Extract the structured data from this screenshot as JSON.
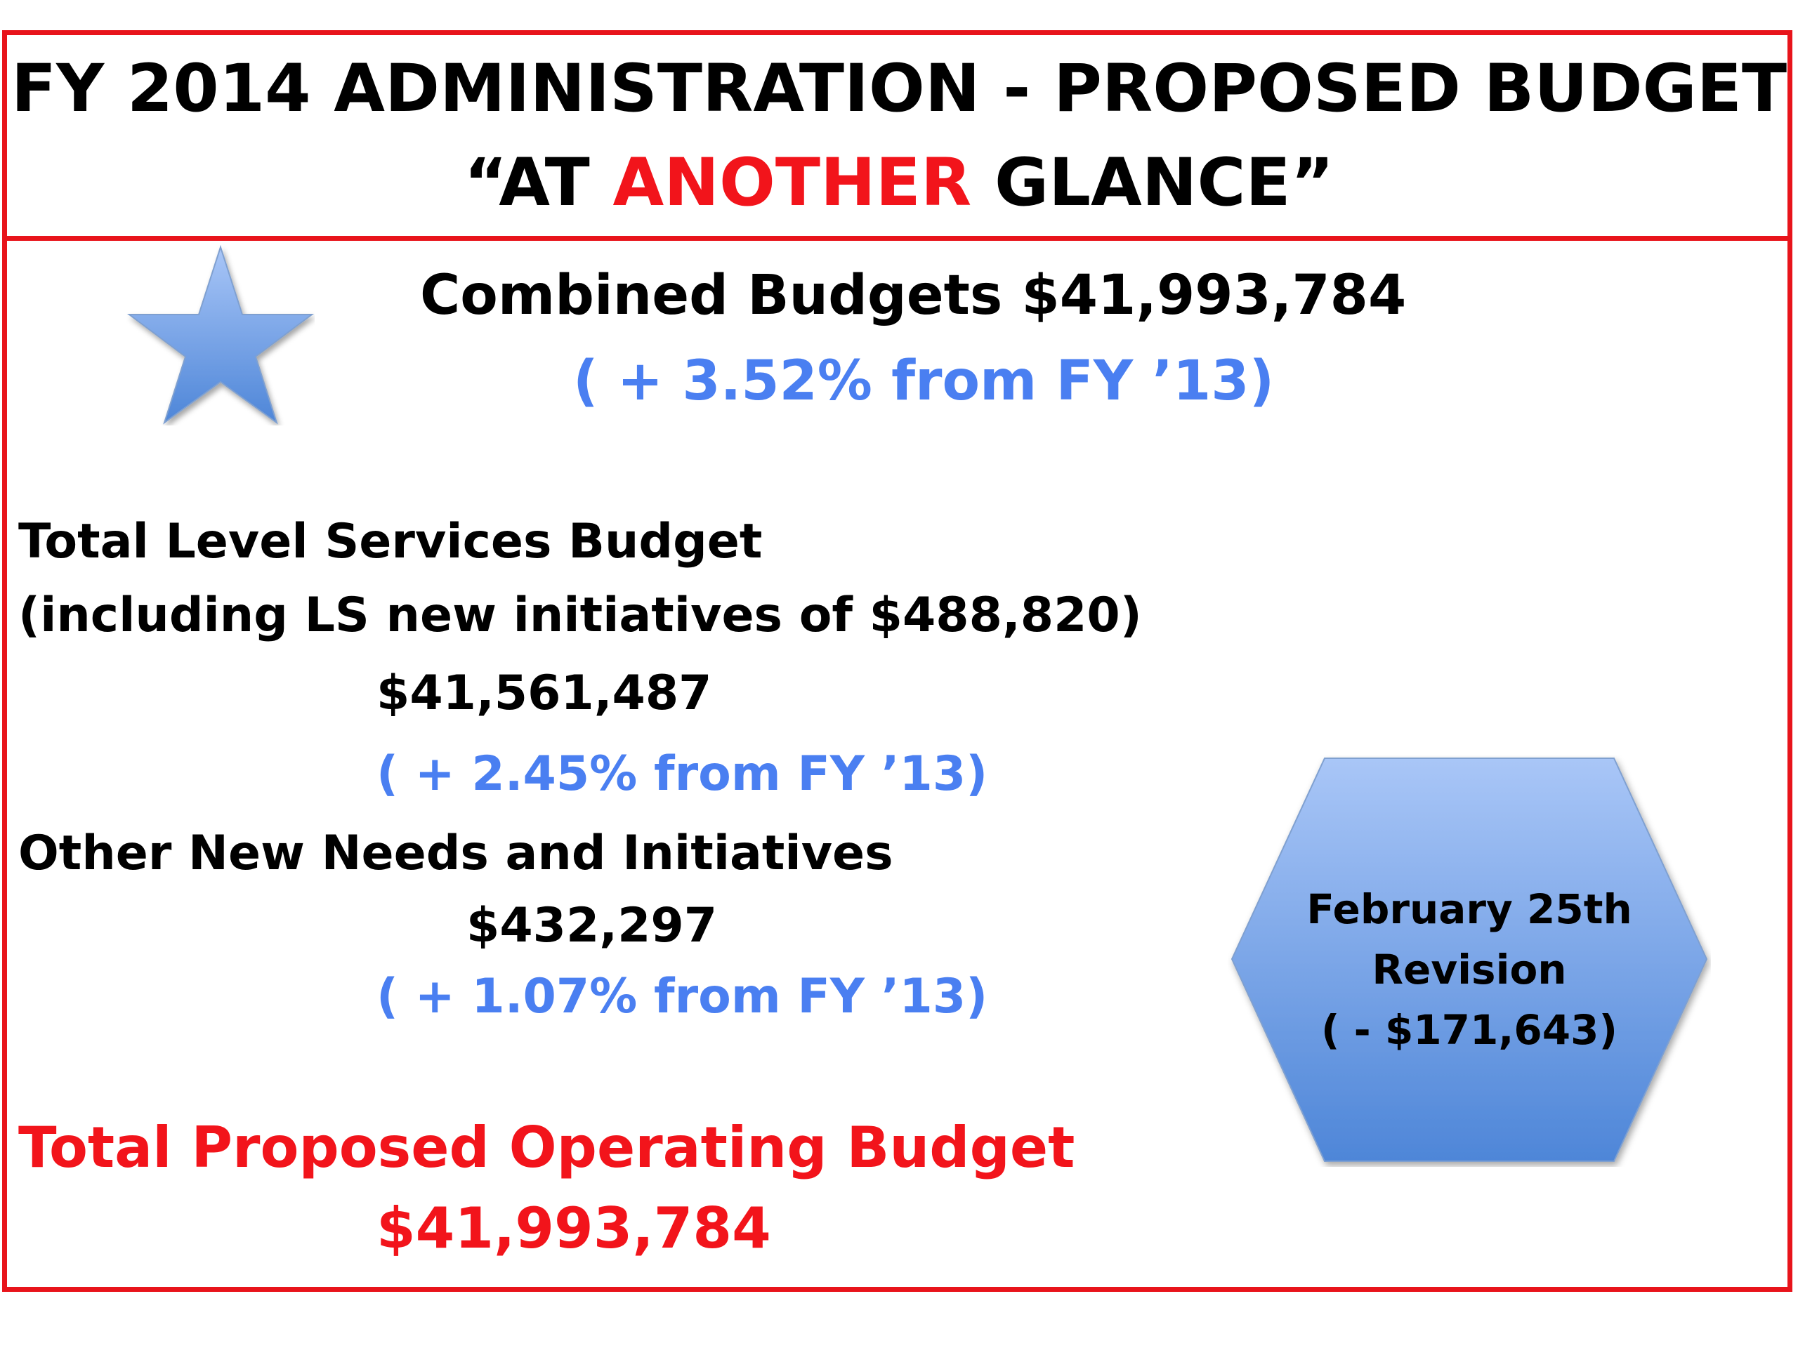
{
  "header": {
    "title_line1": "FY 2014 ADMINISTRATION - PROPOSED BUDGET",
    "title_line2_open": "“AT ",
    "title_line2_emphasis": "ANOTHER",
    "title_line2_close": " GLANCE”"
  },
  "combined": {
    "label": "Combined Budgets $41,993,784",
    "change": "( + 3.52%  from FY ’13)"
  },
  "level_services": {
    "title": "Total Level Services Budget",
    "subtitle": "(including LS new initiatives of $488,820)",
    "amount": "$41,561,487",
    "change": "( + 2.45% from FY ’13)"
  },
  "new_needs": {
    "title": "Other New Needs and Initiatives",
    "amount": "$432,297",
    "change": "( + 1.07% from FY ’13)"
  },
  "total": {
    "title": "Total Proposed Operating Budget",
    "amount": "$41,993,784"
  },
  "revision": {
    "line1": "February 25th",
    "line2": "Revision",
    "line3": "( - $171,643)"
  },
  "colors": {
    "border_red": "#e8141b",
    "text_red": "#f2141b",
    "text_blue": "#4a7ff1",
    "shape_blue_light": "#a9c6f7",
    "shape_blue_dark": "#4e86d8"
  },
  "icons": {
    "star": "star-icon",
    "revision_shape": "hexagon-shape"
  }
}
